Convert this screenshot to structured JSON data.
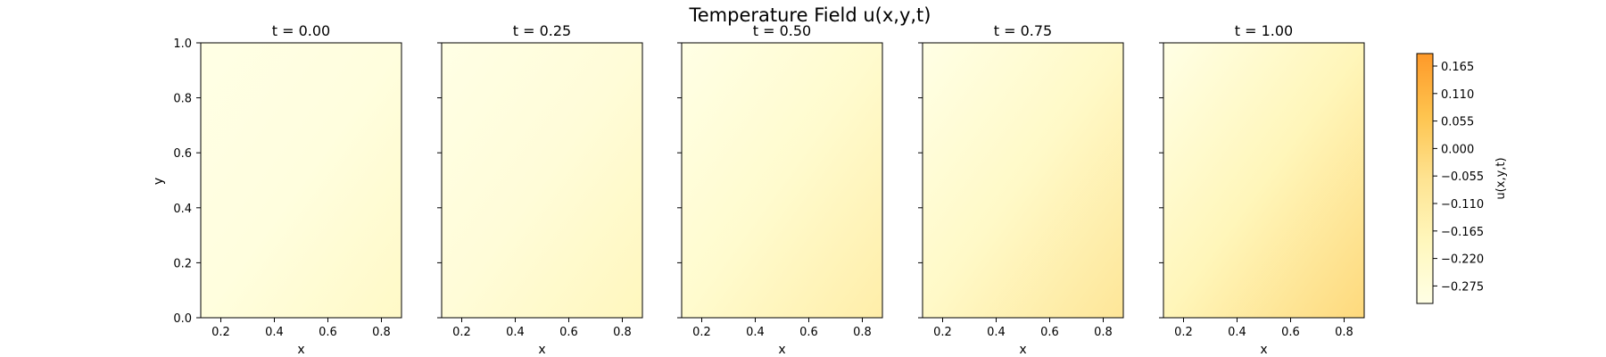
{
  "chart_data": {
    "type": "heatmap",
    "title": "Temperature Field u(x,y,t)",
    "xlabel": "x",
    "ylabel": "y",
    "xlim": [
      0.125,
      0.875
    ],
    "ylim": [
      0.0,
      1.0
    ],
    "x_ticks": [
      "0.2",
      "0.4",
      "0.6",
      "0.8"
    ],
    "y_ticks": [
      "0.0",
      "0.2",
      "0.4",
      "0.6",
      "0.8",
      "1.0"
    ],
    "panels": [
      {
        "title": "t = 0.00",
        "t": 0.0,
        "corner_values": {
          "top_left": -0.31,
          "top_right": -0.29,
          "bottom_left": -0.29,
          "bottom_right": -0.22
        }
      },
      {
        "title": "t = 0.25",
        "t": 0.25,
        "corner_values": {
          "top_left": -0.31,
          "top_right": -0.27,
          "bottom_left": -0.27,
          "bottom_right": -0.19
        }
      },
      {
        "title": "t = 0.50",
        "t": 0.5,
        "corner_values": {
          "top_left": -0.31,
          "top_right": -0.24,
          "bottom_left": -0.24,
          "bottom_right": -0.13
        }
      },
      {
        "title": "t = 0.75",
        "t": 0.75,
        "corner_values": {
          "top_left": -0.31,
          "top_right": -0.22,
          "bottom_left": -0.22,
          "bottom_right": -0.08
        }
      },
      {
        "title": "t = 1.00",
        "t": 1.0,
        "corner_values": {
          "top_left": -0.31,
          "top_right": -0.18,
          "bottom_left": -0.18,
          "bottom_right": -0.02
        }
      }
    ],
    "colorbar": {
      "label": "u(x,y,t)",
      "range": [
        -0.31,
        0.19
      ],
      "ticks": [
        "0.165",
        "0.110",
        "0.055",
        "0.000",
        "−0.055",
        "−0.110",
        "−0.165",
        "−0.220",
        "−0.275"
      ],
      "tick_values": [
        0.165,
        0.11,
        0.055,
        0.0,
        -0.055,
        -0.11,
        -0.165,
        -0.22,
        -0.275
      ],
      "colormap": [
        "#ffffe5",
        "#fff7bc",
        "#fee391",
        "#fec44f",
        "#fe9929"
      ]
    }
  }
}
